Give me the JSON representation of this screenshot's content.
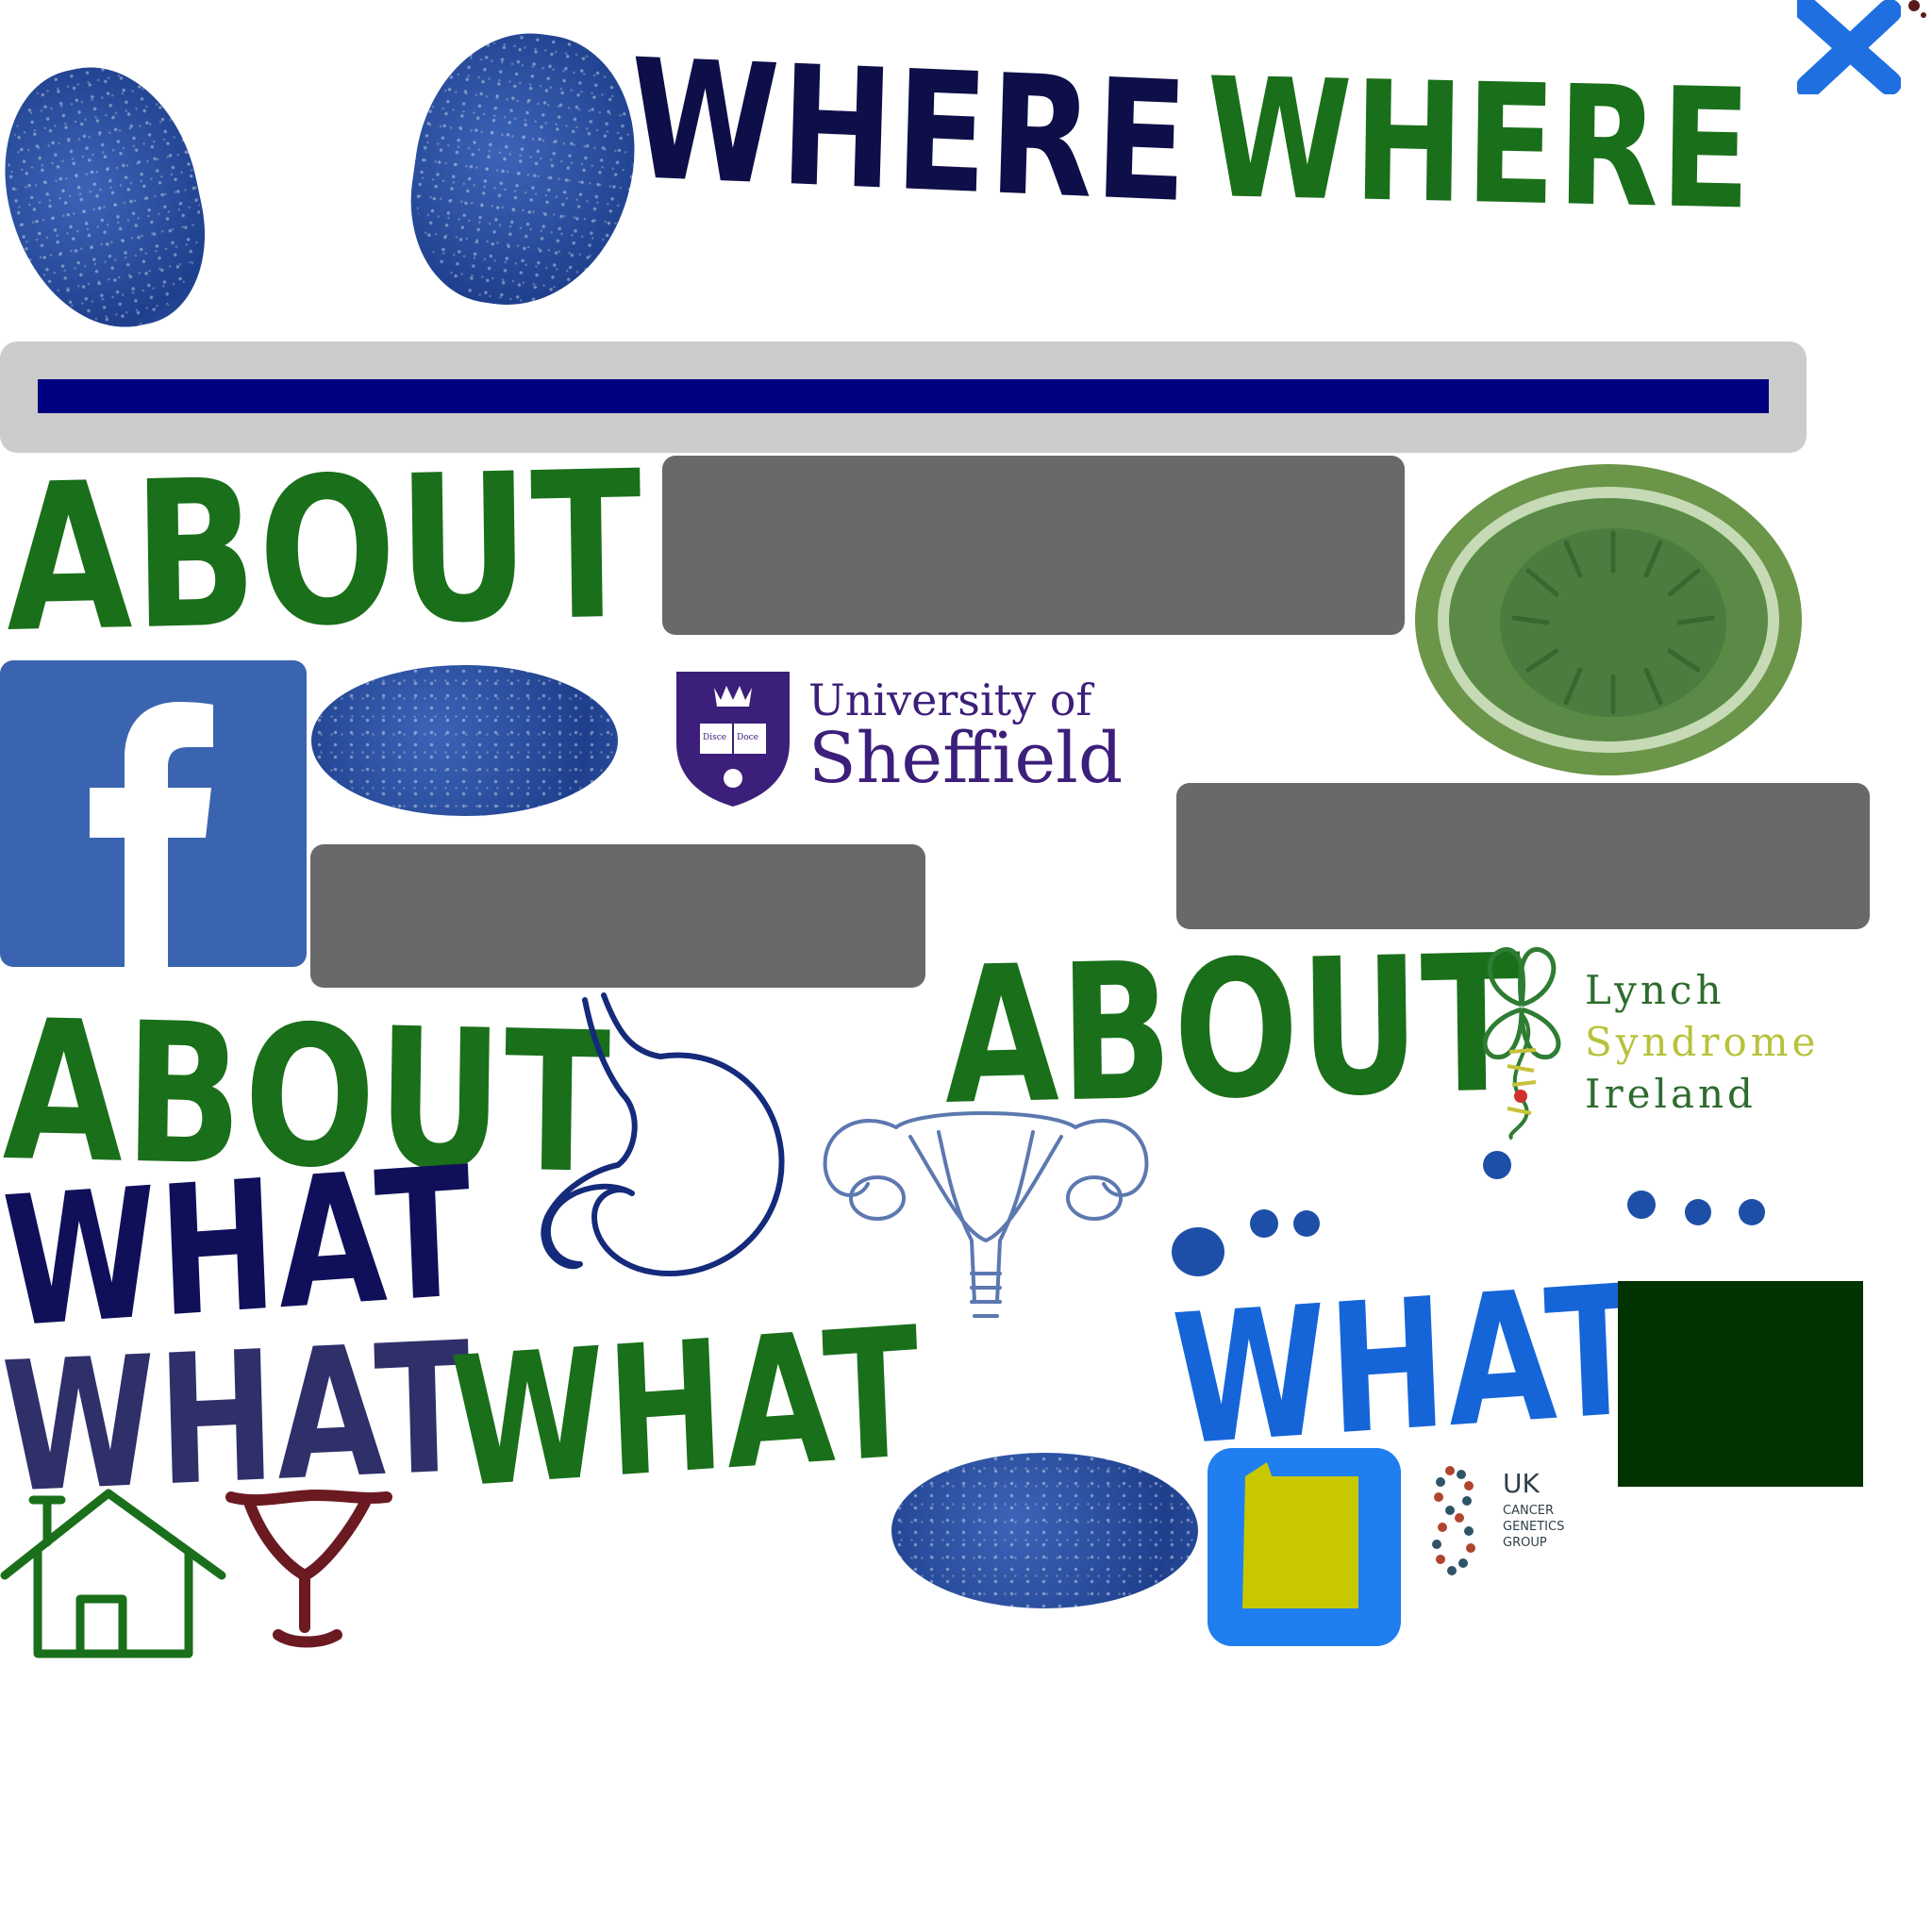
{
  "header": {
    "words": [
      "WHERE",
      "WHERE"
    ],
    "colors": {
      "dark": "#0e0e48",
      "green": "#1a6f1a",
      "blue": "#1565d8"
    }
  },
  "labels": {
    "about_top": "ABOUT",
    "about_left": "ABOUT",
    "about_right": "ABOUT",
    "what_navy": "WHAT",
    "what_purple": "WHAT",
    "what_green": "WHAT",
    "what_blue": "WHAT"
  },
  "logos": {
    "sheffield": {
      "line1": "University of",
      "line2": "Sheffield",
      "motto_left": "Disce",
      "motto_right": "Doce"
    },
    "lynch": {
      "line1": "Lynch",
      "line2": "Syndrome",
      "line3": "Ireland"
    },
    "ukcgg": {
      "line1": "UK",
      "line2": "CANCER",
      "line3": "GENETICS",
      "line4": "GROUP"
    }
  },
  "icons": [
    "crayon-blob-icon",
    "close-icon",
    "facebook-icon",
    "wreath-icon",
    "stomach-icon",
    "uterus-icon",
    "home-icon",
    "cup-icon",
    "square-icon"
  ],
  "colors": {
    "gray_bar": "#cccccc",
    "navy_bar": "#000080",
    "placeholder": "#696969",
    "facebook": "#3b64b0",
    "dark_green": "#003300"
  }
}
